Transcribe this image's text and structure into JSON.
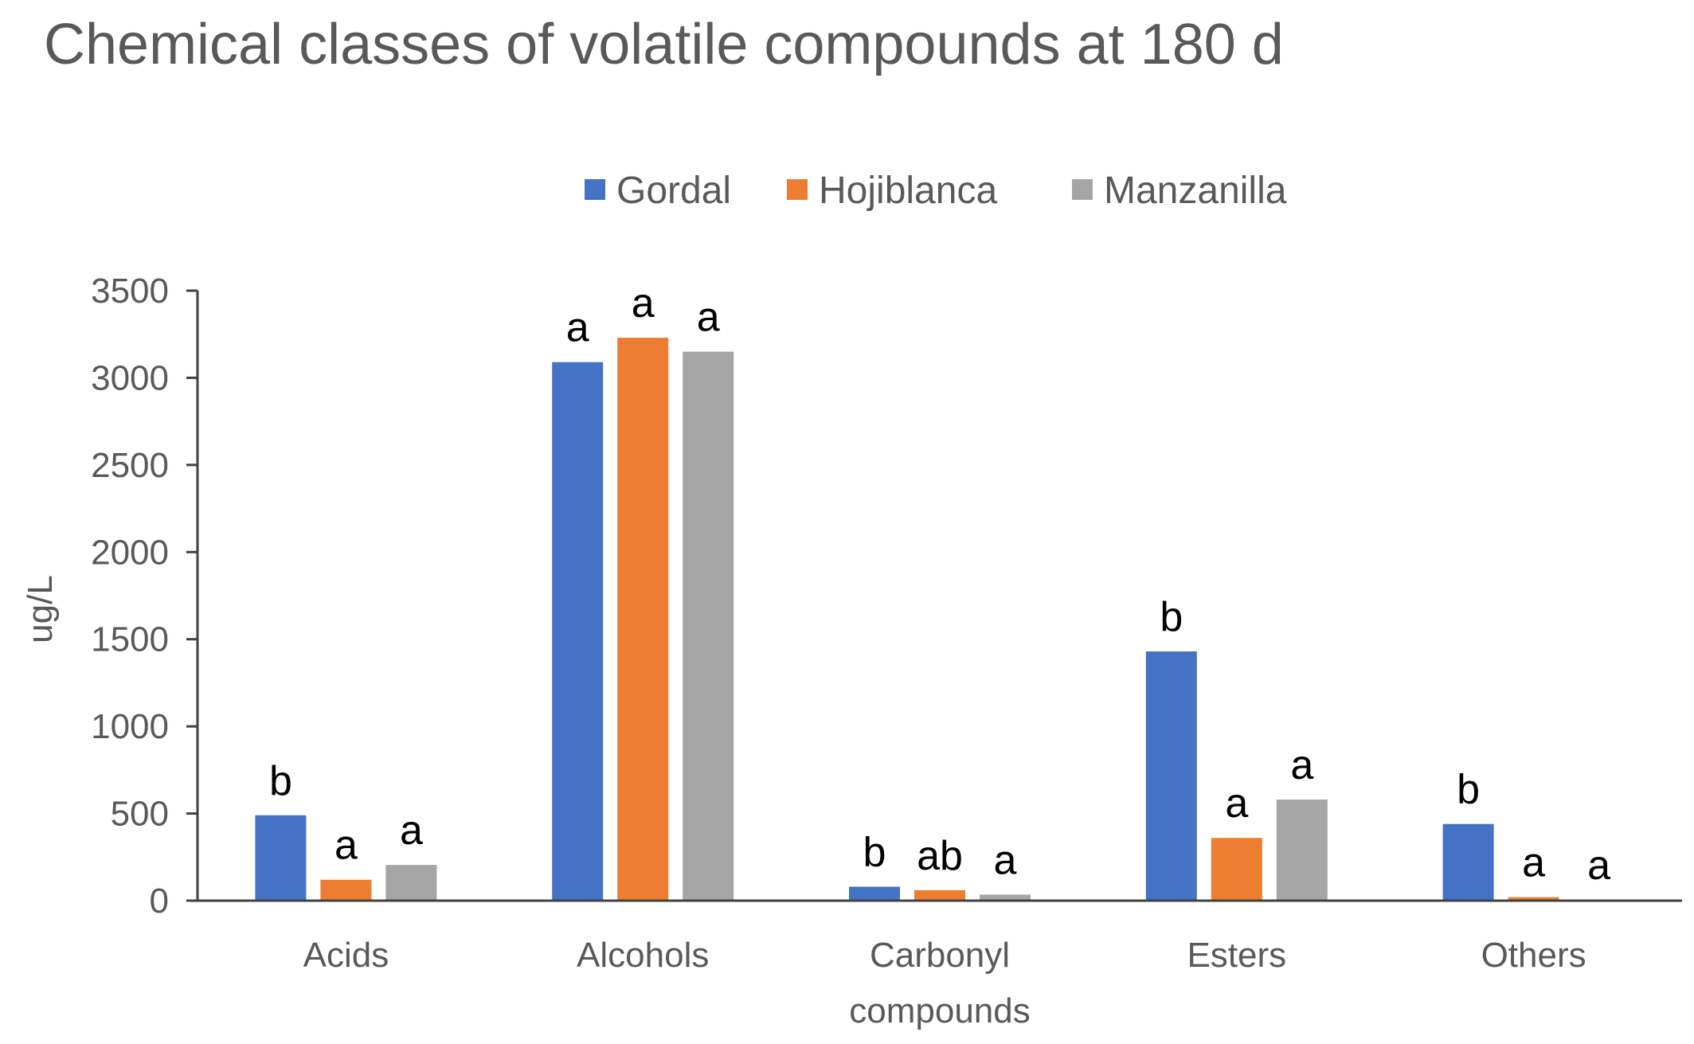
{
  "chart_data": {
    "type": "bar",
    "title": "Chemical classes of volatile compounds at 180 d",
    "xlabel": "",
    "ylabel": "ug/L",
    "ylim": [
      0,
      3500
    ],
    "yticks": [
      0,
      500,
      1000,
      1500,
      2000,
      2500,
      3000,
      3500
    ],
    "grid": false,
    "legend_position": "top",
    "categories": [
      [
        "Acids"
      ],
      [
        "Alcohols"
      ],
      [
        "Carbonyl",
        "compounds"
      ],
      [
        "Esters"
      ],
      [
        "Others"
      ]
    ],
    "series": [
      {
        "name": "Gordal",
        "color": "#4472C4",
        "values": [
          490,
          3090,
          80,
          1430,
          440
        ],
        "labels": [
          "b",
          "a",
          "b",
          "b",
          "b"
        ]
      },
      {
        "name": "Hojiblanca",
        "color": "#ED7D31",
        "values": [
          120,
          3230,
          60,
          360,
          20
        ],
        "labels": [
          "a",
          "a",
          "ab",
          "a",
          "a"
        ]
      },
      {
        "name": "Manzanilla",
        "color": "#A5A5A5",
        "values": [
          205,
          3150,
          35,
          580,
          5
        ],
        "labels": [
          "a",
          "a",
          "a",
          "a",
          "a"
        ]
      }
    ]
  }
}
